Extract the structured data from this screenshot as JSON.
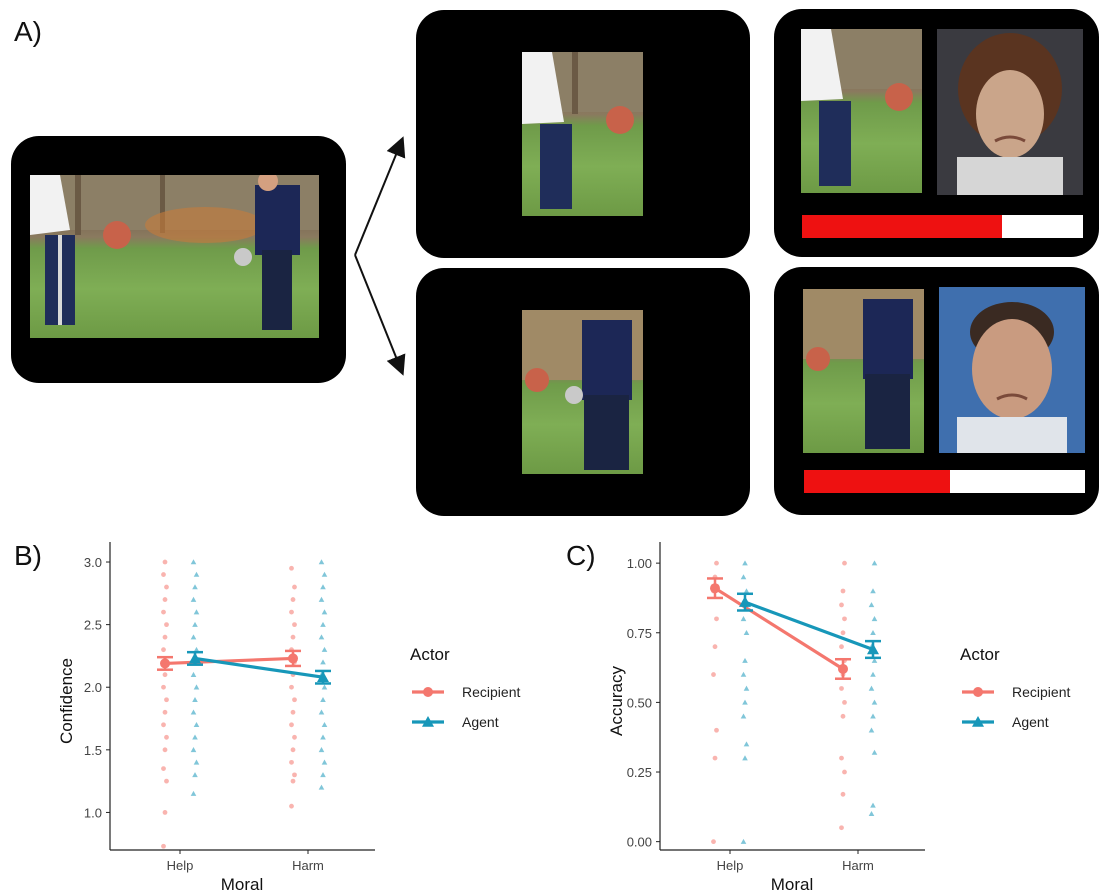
{
  "panels": {
    "a": "A)",
    "b": "B)",
    "c": "C)"
  },
  "ratings": {
    "top": 0.71,
    "bottom": 0.52
  },
  "colors": {
    "recipient": "#F4776E",
    "agent": "#1797B9",
    "bar": "#EE1111"
  },
  "chart_data": [
    {
      "type": "scatter",
      "xlabel": "Moral",
      "ylabel": "Confidence",
      "categories": [
        "Help",
        "Harm"
      ],
      "ylim": [
        0.7,
        3.08
      ],
      "yticks": [
        "1.0",
        "1.5",
        "2.0",
        "2.5",
        "3.0"
      ],
      "legend": {
        "title": "Actor",
        "position": "right"
      },
      "series": [
        {
          "name": "Recipient",
          "color": "#F4776E",
          "marker": "circle",
          "means": [
            2.19,
            2.23
          ],
          "errors": [
            0.05,
            0.06
          ],
          "points": [
            [
              0.73,
              1.0,
              1.25,
              1.35,
              1.5,
              1.6,
              1.7,
              1.8,
              1.9,
              2.0,
              2.1,
              2.2,
              2.3,
              2.4,
              2.5,
              2.6,
              2.7,
              2.8,
              2.9,
              3.0
            ],
            [
              1.05,
              1.25,
              1.3,
              1.4,
              1.5,
              1.6,
              1.7,
              1.8,
              1.9,
              2.0,
              2.1,
              2.2,
              2.3,
              2.4,
              2.5,
              2.6,
              2.7,
              2.8,
              2.95
            ]
          ]
        },
        {
          "name": "Agent",
          "color": "#1797B9",
          "marker": "triangle",
          "means": [
            2.23,
            2.08
          ],
          "errors": [
            0.05,
            0.05
          ],
          "points": [
            [
              1.15,
              1.3,
              1.4,
              1.5,
              1.6,
              1.7,
              1.8,
              1.9,
              2.0,
              2.1,
              2.2,
              2.3,
              2.4,
              2.5,
              2.6,
              2.7,
              2.8,
              2.9,
              3.0
            ],
            [
              1.2,
              1.3,
              1.4,
              1.5,
              1.6,
              1.7,
              1.8,
              1.9,
              2.0,
              2.1,
              2.2,
              2.3,
              2.4,
              2.5,
              2.6,
              2.7,
              2.8,
              2.9,
              3.0
            ]
          ]
        }
      ]
    },
    {
      "type": "scatter",
      "xlabel": "Moral",
      "ylabel": "Accuracy",
      "categories": [
        "Help",
        "Harm"
      ],
      "ylim": [
        -0.03,
        1.04
      ],
      "yticks": [
        "0.00",
        "0.25",
        "0.50",
        "0.75",
        "1.00"
      ],
      "legend": {
        "title": "Actor",
        "position": "right"
      },
      "series": [
        {
          "name": "Recipient",
          "color": "#F4776E",
          "marker": "circle",
          "means": [
            0.91,
            0.62
          ],
          "errors": [
            0.035,
            0.035
          ],
          "points": [
            [
              0.0,
              0.3,
              0.4,
              0.6,
              0.7,
              0.8,
              0.9,
              0.95,
              1.0
            ],
            [
              0.05,
              0.17,
              0.25,
              0.3,
              0.45,
              0.5,
              0.55,
              0.6,
              0.65,
              0.7,
              0.75,
              0.8,
              0.85,
              0.9,
              1.0
            ]
          ]
        },
        {
          "name": "Agent",
          "color": "#1797B9",
          "marker": "triangle",
          "means": [
            0.86,
            0.69
          ],
          "errors": [
            0.03,
            0.03
          ],
          "points": [
            [
              0.0,
              0.3,
              0.35,
              0.45,
              0.5,
              0.55,
              0.6,
              0.65,
              0.75,
              0.8,
              0.85,
              0.9,
              0.95,
              1.0
            ],
            [
              0.1,
              0.13,
              0.32,
              0.4,
              0.45,
              0.5,
              0.55,
              0.6,
              0.65,
              0.7,
              0.75,
              0.8,
              0.85,
              0.9,
              1.0
            ]
          ]
        }
      ]
    }
  ]
}
